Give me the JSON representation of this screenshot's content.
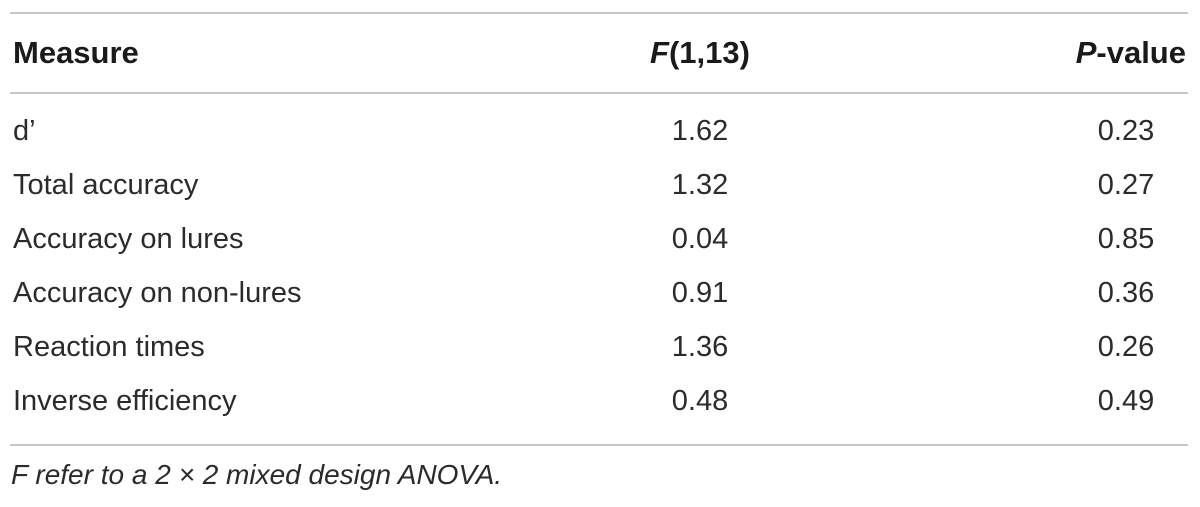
{
  "table": {
    "columns": {
      "measure": "Measure",
      "f_stat_letter": "F",
      "f_stat_df": "(1,13)",
      "p_letter": "P",
      "p_rest": "-value"
    },
    "rows": [
      {
        "measure": "d’",
        "f": "1.62",
        "p": "0.23"
      },
      {
        "measure": "Total accuracy",
        "f": "1.32",
        "p": "0.27"
      },
      {
        "measure": "Accuracy on lures",
        "f": "0.04",
        "p": "0.85"
      },
      {
        "measure": "Accuracy on non-lures",
        "f": "0.91",
        "p": "0.36"
      },
      {
        "measure": "Reaction times",
        "f": "1.36",
        "p": "0.26"
      },
      {
        "measure": "Inverse efficiency",
        "f": "0.48",
        "p": "0.49"
      }
    ],
    "footnote": "F refer to a 2 × 2 mixed design ANOVA."
  }
}
